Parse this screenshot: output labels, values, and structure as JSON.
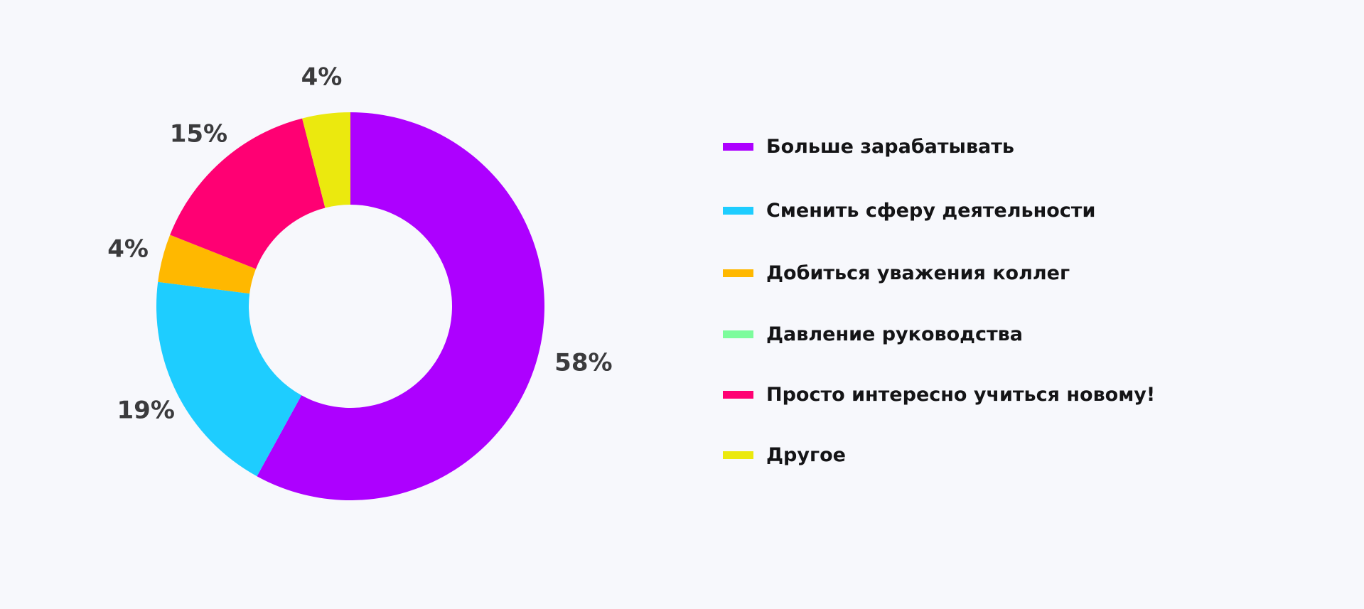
{
  "chart_data": {
    "type": "pie",
    "donut": true,
    "title": "",
    "legend_position": "right",
    "slices": [
      {
        "label": "Больше зарабатывать",
        "value": 58,
        "value_label": "58%",
        "color": "#ad00ff"
      },
      {
        "label": "Сменить сферу деятельности",
        "value": 19,
        "value_label": "19%",
        "color": "#1ecdff"
      },
      {
        "label": "Добиться уважения коллег",
        "value": 4,
        "value_label": "4%",
        "color": "#ffb800"
      },
      {
        "label": "Давление руководства",
        "value": 0,
        "value_label": "",
        "color": "#7dfc9c"
      },
      {
        "label": "Просто интересно учиться новому!",
        "value": 15,
        "value_label": "15%",
        "color": "#ff0073"
      },
      {
        "label": "Другое",
        "value": 4,
        "value_label": "4%",
        "color": "#ebe90e"
      }
    ]
  }
}
